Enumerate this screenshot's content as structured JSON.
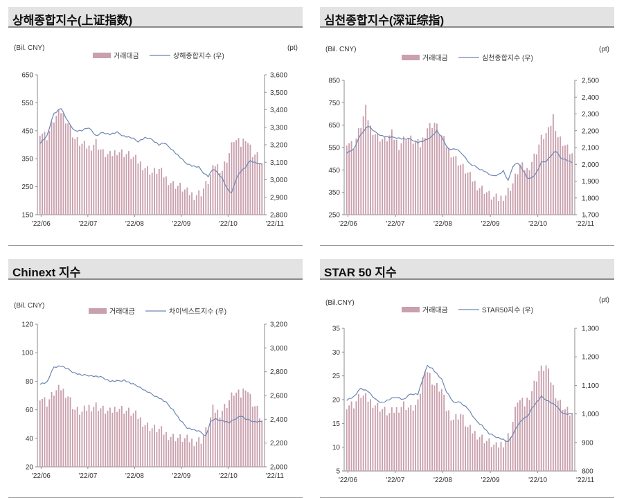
{
  "colors": {
    "bar": "#c9a0ad",
    "line": "#6c86b3",
    "axis": "#8a8a8a",
    "titlebar": "#e3e3e3"
  },
  "panels": [
    {
      "title": "상해종합지수(上证指数)",
      "unit_left": "(Bil. CNY)",
      "unit_right": "(pt)",
      "legend_bar": "거래대금",
      "legend_line": "상해종합지수 (우)"
    },
    {
      "title": "심천종합지수(深证综指)",
      "unit_left": "(Bil. CNY)",
      "unit_right": "(pt)",
      "legend_bar": "거래대금",
      "legend_line": "심천종합지수 (우)"
    },
    {
      "title": "Chinext 지수",
      "unit_left": "(Bil. CNY)",
      "unit_right": "",
      "legend_bar": "거래대금",
      "legend_line": "차이넥스트지수 (우)"
    },
    {
      "title": "STAR 50 지수",
      "unit_left": "(Bil.CNY)",
      "unit_right": "(pt)",
      "legend_bar": "거래대금",
      "legend_line": "STAR50지수 (우)"
    }
  ],
  "chart_data": [
    {
      "type": "bar+line",
      "title": "상해종합지수(上证指数)",
      "ylabel": "(Bil. CNY)",
      "y2label": "(pt)",
      "ylim": [
        150,
        650
      ],
      "yticks": [
        "650",
        "550",
        "450",
        "350",
        "250",
        "150"
      ],
      "y2lim": [
        2800,
        3600
      ],
      "y2ticks": [
        "3,600",
        "3,500",
        "3,400",
        "3,300",
        "3,200",
        "3,100",
        "3,000",
        "2,900",
        "2,800"
      ],
      "xticks": [
        "'22/06",
        "'22/07",
        "'22/08",
        "'22/09",
        "'22/10",
        "'22/11"
      ],
      "bar_keys": [
        [
          0,
          450
        ],
        [
          3,
          430
        ],
        [
          6,
          490
        ],
        [
          9,
          520
        ],
        [
          12,
          480
        ],
        [
          15,
          420
        ],
        [
          18,
          400
        ],
        [
          21,
          390
        ],
        [
          24,
          410
        ],
        [
          27,
          370
        ],
        [
          30,
          360
        ],
        [
          33,
          380
        ],
        [
          36,
          370
        ],
        [
          39,
          360
        ],
        [
          42,
          340
        ],
        [
          45,
          320
        ],
        [
          48,
          300
        ],
        [
          51,
          310
        ],
        [
          54,
          280
        ],
        [
          57,
          260
        ],
        [
          60,
          250
        ],
        [
          63,
          230
        ],
        [
          66,
          220
        ],
        [
          69,
          230
        ],
        [
          72,
          270
        ],
        [
          75,
          330
        ],
        [
          78,
          310
        ],
        [
          81,
          370
        ],
        [
          83,
          420
        ],
        [
          86,
          400
        ],
        [
          88,
          430
        ],
        [
          91,
          370
        ],
        [
          93,
          360
        ],
        [
          95,
          330
        ]
      ],
      "line_keys": [
        [
          0,
          3210
        ],
        [
          3,
          3250
        ],
        [
          6,
          3380
        ],
        [
          9,
          3410
        ],
        [
          12,
          3330
        ],
        [
          15,
          3280
        ],
        [
          18,
          3280
        ],
        [
          21,
          3300
        ],
        [
          24,
          3250
        ],
        [
          27,
          3270
        ],
        [
          30,
          3260
        ],
        [
          33,
          3270
        ],
        [
          36,
          3250
        ],
        [
          39,
          3240
        ],
        [
          42,
          3220
        ],
        [
          45,
          3240
        ],
        [
          48,
          3230
        ],
        [
          51,
          3200
        ],
        [
          53,
          3210
        ],
        [
          56,
          3180
        ],
        [
          59,
          3140
        ],
        [
          62,
          3100
        ],
        [
          65,
          3080
        ],
        [
          68,
          3070
        ],
        [
          70,
          3040
        ],
        [
          72,
          3020
        ],
        [
          74,
          3060
        ],
        [
          76,
          3040
        ],
        [
          78,
          3010
        ],
        [
          80,
          2950
        ],
        [
          82,
          2920
        ],
        [
          84,
          3010
        ],
        [
          86,
          3050
        ],
        [
          88,
          3070
        ],
        [
          90,
          3110
        ],
        [
          92,
          3100
        ],
        [
          94,
          3090
        ],
        [
          95,
          3090
        ]
      ]
    },
    {
      "type": "bar+line",
      "title": "심천종합지수(深证综指)",
      "ylabel": "(Bil. CNY)",
      "y2label": "(pt)",
      "ylim": [
        250,
        850
      ],
      "yticks": [
        "850",
        "750",
        "650",
        "550",
        "450",
        "350",
        "250"
      ],
      "y2lim": [
        1700,
        2500
      ],
      "y2ticks": [
        "2,500",
        "2,400",
        "2,300",
        "2,200",
        "2,100",
        "2,000",
        "1,900",
        "1,800",
        "1,700"
      ],
      "xticks": [
        "'22/06",
        "'22/07",
        "'22/08",
        "'22/09",
        "'22/10",
        "'22/11"
      ],
      "bar_keys": [
        [
          0,
          580
        ],
        [
          3,
          560
        ],
        [
          6,
          650
        ],
        [
          8,
          720
        ],
        [
          10,
          640
        ],
        [
          13,
          600
        ],
        [
          16,
          580
        ],
        [
          19,
          610
        ],
        [
          22,
          560
        ],
        [
          25,
          600
        ],
        [
          28,
          580
        ],
        [
          31,
          560
        ],
        [
          34,
          640
        ],
        [
          37,
          660
        ],
        [
          40,
          600
        ],
        [
          43,
          540
        ],
        [
          46,
          500
        ],
        [
          49,
          460
        ],
        [
          52,
          420
        ],
        [
          55,
          380
        ],
        [
          58,
          360
        ],
        [
          61,
          330
        ],
        [
          64,
          320
        ],
        [
          67,
          340
        ],
        [
          70,
          390
        ],
        [
          73,
          470
        ],
        [
          76,
          450
        ],
        [
          79,
          510
        ],
        [
          82,
          590
        ],
        [
          85,
          620
        ],
        [
          87,
          690
        ],
        [
          89,
          600
        ],
        [
          92,
          560
        ],
        [
          95,
          520
        ]
      ],
      "line_keys": [
        [
          0,
          2070
        ],
        [
          3,
          2090
        ],
        [
          6,
          2180
        ],
        [
          9,
          2230
        ],
        [
          12,
          2190
        ],
        [
          15,
          2170
        ],
        [
          18,
          2160
        ],
        [
          21,
          2160
        ],
        [
          24,
          2150
        ],
        [
          27,
          2150
        ],
        [
          30,
          2130
        ],
        [
          33,
          2140
        ],
        [
          36,
          2170
        ],
        [
          38,
          2200
        ],
        [
          40,
          2160
        ],
        [
          43,
          2090
        ],
        [
          46,
          2090
        ],
        [
          49,
          2060
        ],
        [
          52,
          2000
        ],
        [
          55,
          1980
        ],
        [
          58,
          1960
        ],
        [
          61,
          1930
        ],
        [
          64,
          1940
        ],
        [
          66,
          1960
        ],
        [
          68,
          1900
        ],
        [
          70,
          1990
        ],
        [
          72,
          2010
        ],
        [
          74,
          1970
        ],
        [
          76,
          1920
        ],
        [
          78,
          1920
        ],
        [
          80,
          1950
        ],
        [
          82,
          2010
        ],
        [
          84,
          2020
        ],
        [
          86,
          2050
        ],
        [
          88,
          2080
        ],
        [
          90,
          2040
        ],
        [
          92,
          2030
        ],
        [
          95,
          2010
        ]
      ]
    },
    {
      "type": "bar+line",
      "title": "Chinext 지수",
      "ylabel": "(Bil. CNY)",
      "y2label": "",
      "ylim": [
        20,
        120
      ],
      "yticks": [
        "120",
        "100",
        "80",
        "60",
        "40",
        "20"
      ],
      "y2lim": [
        2000,
        3200
      ],
      "y2ticks": [
        "3,200",
        "3,000",
        "2,800",
        "2,600",
        "2,400",
        "2,200",
        "2,000"
      ],
      "xticks": [
        "'22/06",
        "'22/07",
        "'22/08",
        "'22/09",
        "'22/10",
        "'22/11"
      ],
      "bar_keys": [
        [
          0,
          70
        ],
        [
          3,
          65
        ],
        [
          6,
          72
        ],
        [
          9,
          75
        ],
        [
          12,
          70
        ],
        [
          15,
          60
        ],
        [
          18,
          58
        ],
        [
          21,
          62
        ],
        [
          24,
          63
        ],
        [
          27,
          60
        ],
        [
          30,
          58
        ],
        [
          33,
          62
        ],
        [
          36,
          60
        ],
        [
          39,
          58
        ],
        [
          42,
          55
        ],
        [
          45,
          50
        ],
        [
          48,
          47
        ],
        [
          51,
          46
        ],
        [
          54,
          43
        ],
        [
          57,
          41
        ],
        [
          60,
          40
        ],
        [
          63,
          39
        ],
        [
          66,
          38
        ],
        [
          69,
          39
        ],
        [
          72,
          48
        ],
        [
          74,
          60
        ],
        [
          77,
          58
        ],
        [
          80,
          64
        ],
        [
          83,
          72
        ],
        [
          86,
          70
        ],
        [
          88,
          77
        ],
        [
          91,
          65
        ],
        [
          93,
          60
        ],
        [
          95,
          52
        ]
      ],
      "line_keys": [
        [
          0,
          2700
        ],
        [
          3,
          2710
        ],
        [
          6,
          2840
        ],
        [
          9,
          2850
        ],
        [
          12,
          2820
        ],
        [
          15,
          2790
        ],
        [
          18,
          2770
        ],
        [
          21,
          2770
        ],
        [
          24,
          2760
        ],
        [
          27,
          2750
        ],
        [
          30,
          2720
        ],
        [
          33,
          2720
        ],
        [
          36,
          2730
        ],
        [
          39,
          2700
        ],
        [
          42,
          2680
        ],
        [
          45,
          2640
        ],
        [
          48,
          2610
        ],
        [
          51,
          2580
        ],
        [
          54,
          2540
        ],
        [
          57,
          2480
        ],
        [
          60,
          2390
        ],
        [
          63,
          2330
        ],
        [
          66,
          2310
        ],
        [
          69,
          2290
        ],
        [
          71,
          2260
        ],
        [
          73,
          2380
        ],
        [
          75,
          2400
        ],
        [
          78,
          2390
        ],
        [
          81,
          2370
        ],
        [
          84,
          2410
        ],
        [
          86,
          2430
        ],
        [
          88,
          2400
        ],
        [
          90,
          2390
        ],
        [
          92,
          2380
        ],
        [
          95,
          2380
        ]
      ]
    },
    {
      "type": "bar+line",
      "title": "STAR 50 지수",
      "ylabel": "(Bil.CNY)",
      "y2label": "(pt)",
      "ylim": [
        5,
        35
      ],
      "yticks": [
        "35",
        "30",
        "25",
        "20",
        "15",
        "10",
        "5"
      ],
      "y2lim": [
        800,
        1300
      ],
      "y2ticks": [
        "1,300",
        "1,200",
        "1,100",
        "1,000",
        "900",
        "800"
      ],
      "xticks": [
        "'22/06",
        "'22/07",
        "'22/08",
        "'22/09",
        "'22/10",
        "'22/11"
      ],
      "bar_keys": [
        [
          0,
          19
        ],
        [
          3,
          19
        ],
        [
          6,
          21
        ],
        [
          9,
          20
        ],
        [
          12,
          19
        ],
        [
          15,
          18
        ],
        [
          18,
          17
        ],
        [
          21,
          18
        ],
        [
          24,
          19
        ],
        [
          27,
          18
        ],
        [
          30,
          19
        ],
        [
          33,
          27
        ],
        [
          35,
          25
        ],
        [
          37,
          23
        ],
        [
          40,
          22
        ],
        [
          42,
          18
        ],
        [
          45,
          16
        ],
        [
          48,
          17
        ],
        [
          51,
          14
        ],
        [
          54,
          13
        ],
        [
          57,
          12
        ],
        [
          60,
          11
        ],
        [
          63,
          10
        ],
        [
          66,
          11
        ],
        [
          69,
          13
        ],
        [
          72,
          20
        ],
        [
          75,
          19
        ],
        [
          78,
          22
        ],
        [
          81,
          26
        ],
        [
          84,
          27
        ],
        [
          86,
          24
        ],
        [
          89,
          20
        ],
        [
          92,
          18
        ],
        [
          95,
          17
        ]
      ],
      "line_keys": [
        [
          0,
          1050
        ],
        [
          3,
          1060
        ],
        [
          6,
          1090
        ],
        [
          9,
          1080
        ],
        [
          12,
          1050
        ],
        [
          15,
          1040
        ],
        [
          18,
          1050
        ],
        [
          21,
          1060
        ],
        [
          24,
          1050
        ],
        [
          27,
          1070
        ],
        [
          30,
          1070
        ],
        [
          32,
          1120
        ],
        [
          34,
          1170
        ],
        [
          36,
          1160
        ],
        [
          38,
          1140
        ],
        [
          40,
          1120
        ],
        [
          42,
          1080
        ],
        [
          45,
          1040
        ],
        [
          48,
          1040
        ],
        [
          51,
          1020
        ],
        [
          54,
          980
        ],
        [
          57,
          960
        ],
        [
          60,
          930
        ],
        [
          63,
          920
        ],
        [
          66,
          910
        ],
        [
          68,
          900
        ],
        [
          70,
          930
        ],
        [
          72,
          960
        ],
        [
          74,
          980
        ],
        [
          76,
          990
        ],
        [
          78,
          1020
        ],
        [
          80,
          1040
        ],
        [
          82,
          1060
        ],
        [
          84,
          1050
        ],
        [
          86,
          1040
        ],
        [
          88,
          1030
        ],
        [
          90,
          1010
        ],
        [
          92,
          1000
        ],
        [
          95,
          1000
        ]
      ]
    }
  ]
}
